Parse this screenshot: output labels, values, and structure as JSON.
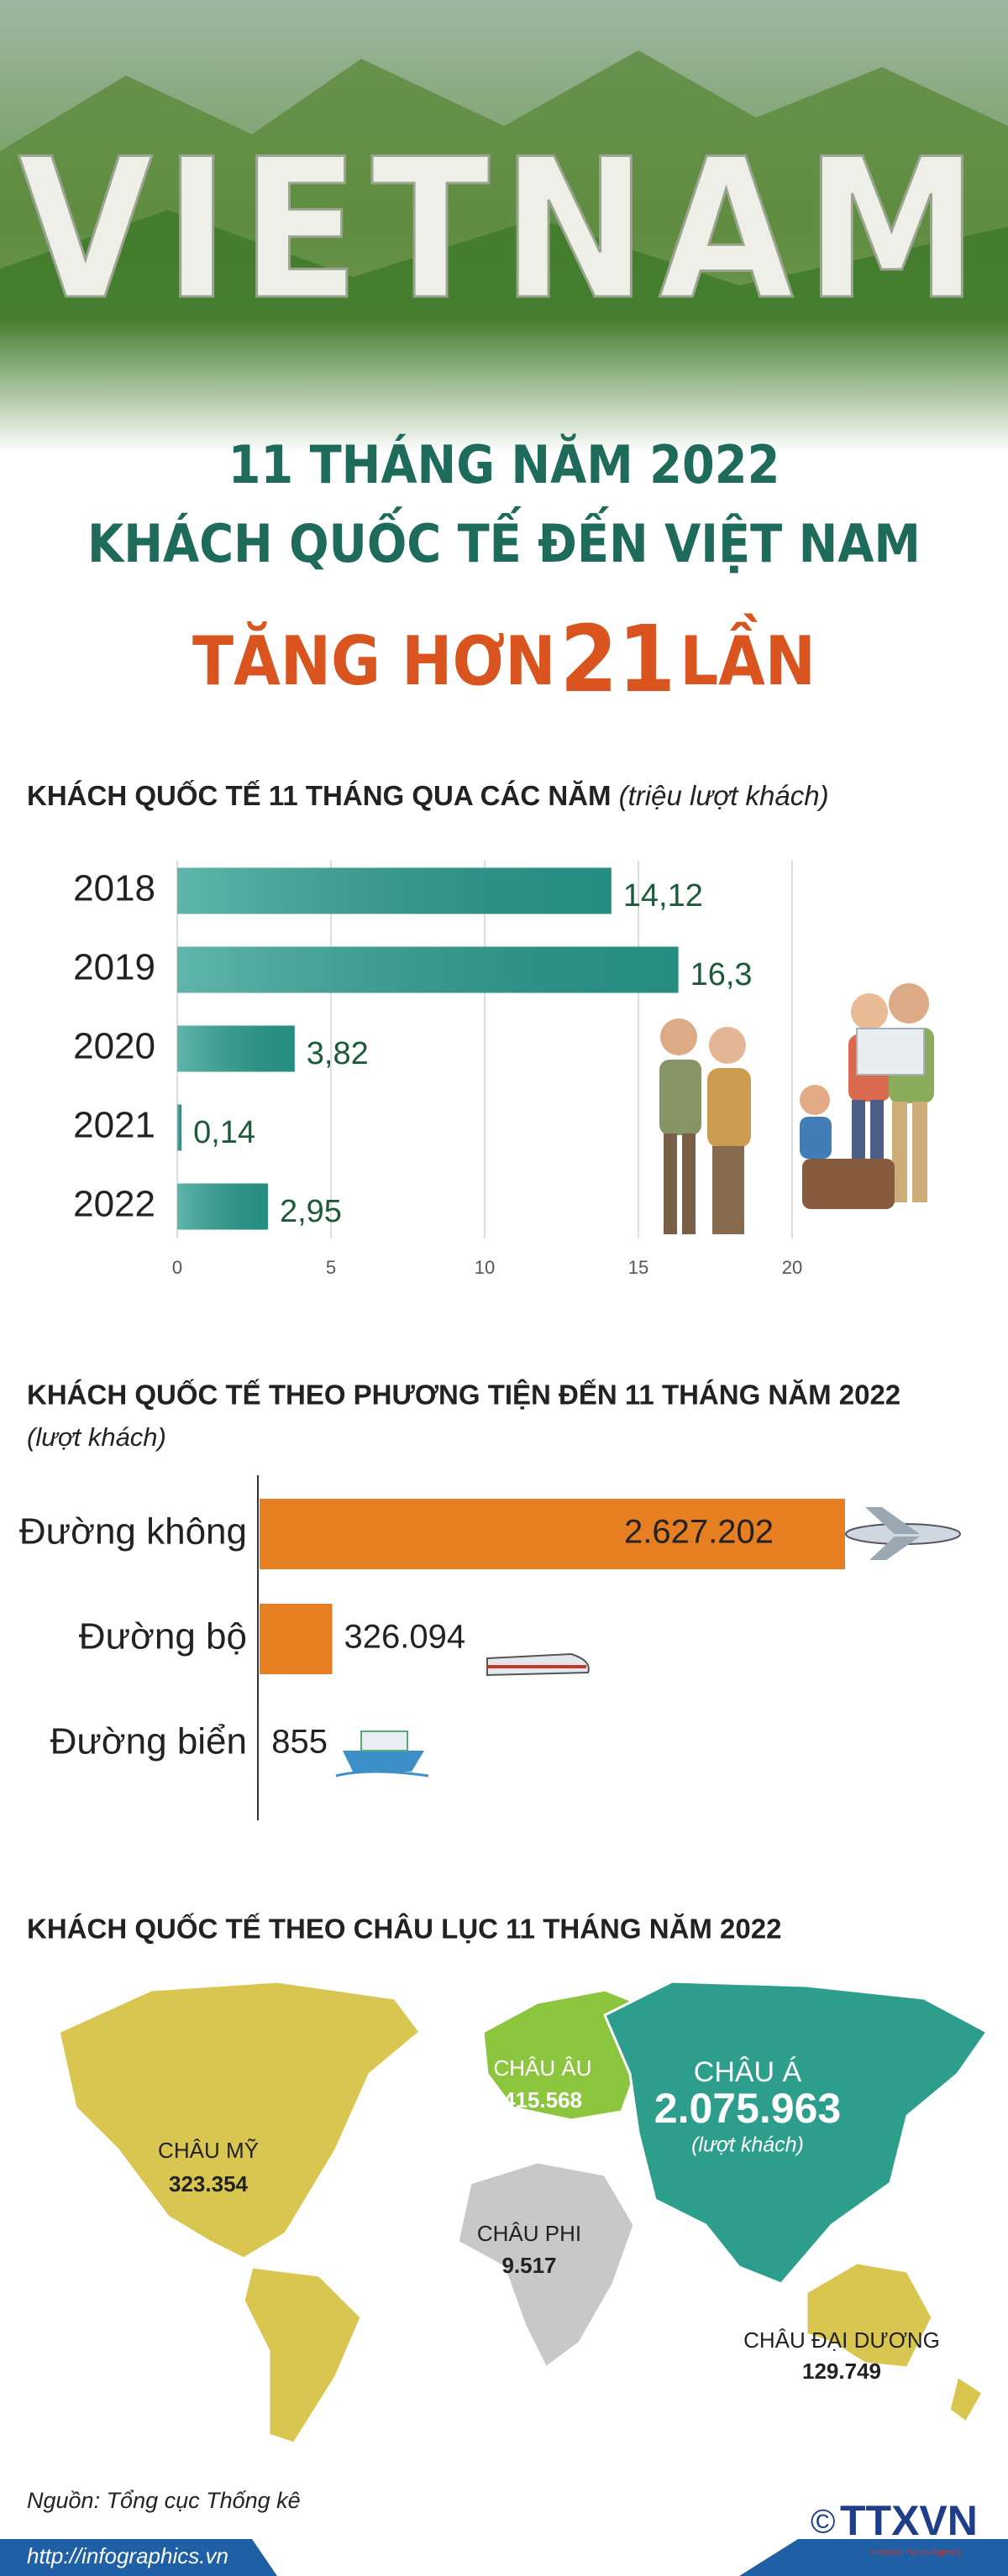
{
  "header": {
    "banner": "VIETNAM",
    "line1": "11 THÁNG NĂM 2022",
    "line2": "KHÁCH QUỐC TẾ ĐẾN VIỆT NAM",
    "line3_prefix": "TĂNG HƠN",
    "line3_number": "21",
    "line3_suffix": "LẦN"
  },
  "chart_data": [
    {
      "type": "bar",
      "orientation": "horizontal",
      "title": "KHÁCH QUỐC TẾ 11 THÁNG QUA CÁC NĂM",
      "unit": "(triệu lượt khách)",
      "categories": [
        "2018",
        "2019",
        "2020",
        "2021",
        "2022"
      ],
      "values": [
        14.12,
        16.3,
        3.82,
        0.14,
        2.95
      ],
      "value_labels": [
        "14,12",
        "16,3",
        "3,82",
        "0,14",
        "2,95"
      ],
      "color": "#2a9d8f",
      "xlim": [
        0,
        20
      ],
      "xticks": [
        0,
        5,
        10,
        15,
        20
      ],
      "grid": true
    },
    {
      "type": "bar",
      "orientation": "horizontal",
      "title": "KHÁCH QUỐC TẾ THEO PHƯƠNG TIỆN ĐẾN 11 THÁNG NĂM 2022",
      "unit": "(lượt khách)",
      "categories": [
        "Đường không",
        "Đường bộ",
        "Đường  biển"
      ],
      "values": [
        2627202,
        326094,
        855
      ],
      "value_labels": [
        "2.627.202",
        "326.094",
        "855"
      ],
      "color": "#e67e22"
    },
    {
      "type": "map",
      "title": "KHÁCH QUỐC TẾ THEO CHÂU LỤC 11 THÁNG NĂM 2022",
      "unit": "(lượt khách)",
      "categories": [
        "CHÂU MỸ",
        "CHÂU ÂU",
        "CHÂU Á",
        "CHÂU PHI",
        "CHÂU ĐẠI DƯƠNG"
      ],
      "values": [
        323354,
        415568,
        2075963,
        9517,
        129749
      ],
      "value_labels": [
        "323.354",
        "415.568",
        "2.075.963",
        "9.517",
        "129.749"
      ],
      "colors": [
        "#d9c651",
        "#8cc63f",
        "#2e9e8c",
        "#c8c8c8",
        "#d9c651"
      ]
    }
  ],
  "footer": {
    "source": "Nguồn: Tổng cục Thống kê",
    "url": "http://infographics.vn",
    "copyright": "©",
    "logo": "TTXVN",
    "logo_sub": "Vietnam News Agency"
  }
}
